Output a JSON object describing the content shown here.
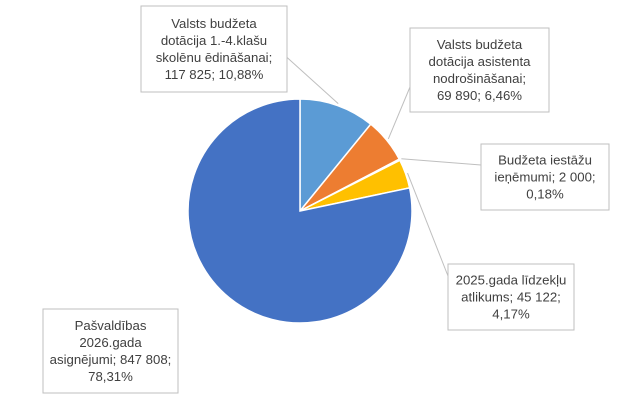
{
  "chart_data": {
    "type": "pie",
    "title": "",
    "slices": [
      {
        "key": "valsts-budzeta-dotacija-1-4",
        "label_lines": [
          "Valsts budžeta",
          "dotācija  1.-4.klašu",
          "skolēnu ēdināšanai;",
          "117 825; 10,88%"
        ],
        "value": 117825,
        "percent": "10,88%",
        "color": "#5B9BD5"
      },
      {
        "key": "valsts-budzeta-dotacija-asistenta",
        "label_lines": [
          "Valsts budžeta",
          "dotācija  asistenta",
          "nodrošināšanai;",
          "69 890; 6,46%"
        ],
        "value": 69890,
        "percent": "6,46%",
        "color": "#ED7D31"
      },
      {
        "key": "budzeta-iestazu-ienemumi",
        "label_lines": [
          "Budžeta iestāžu",
          "ieņēmumi; 2 000;",
          "0,18%"
        ],
        "value": 2000,
        "percent": "0,18%",
        "color": "#A5A5A5"
      },
      {
        "key": "2025-gada-lidzeklu-atlikums",
        "label_lines": [
          "2025.gada līdzekļu",
          "atlikums; 45 122;",
          "4,17%"
        ],
        "value": 45122,
        "percent": "4,17%",
        "color": "#FFC000"
      },
      {
        "key": "pasvaldibas-2026-gada-asignejumi",
        "label_lines": [
          "Pašvaldības",
          "2026.gada",
          "asignējumi; 847 808;",
          "78,31%"
        ],
        "value": 847808,
        "percent": "78,31%",
        "color": "#4472C4"
      }
    ]
  }
}
